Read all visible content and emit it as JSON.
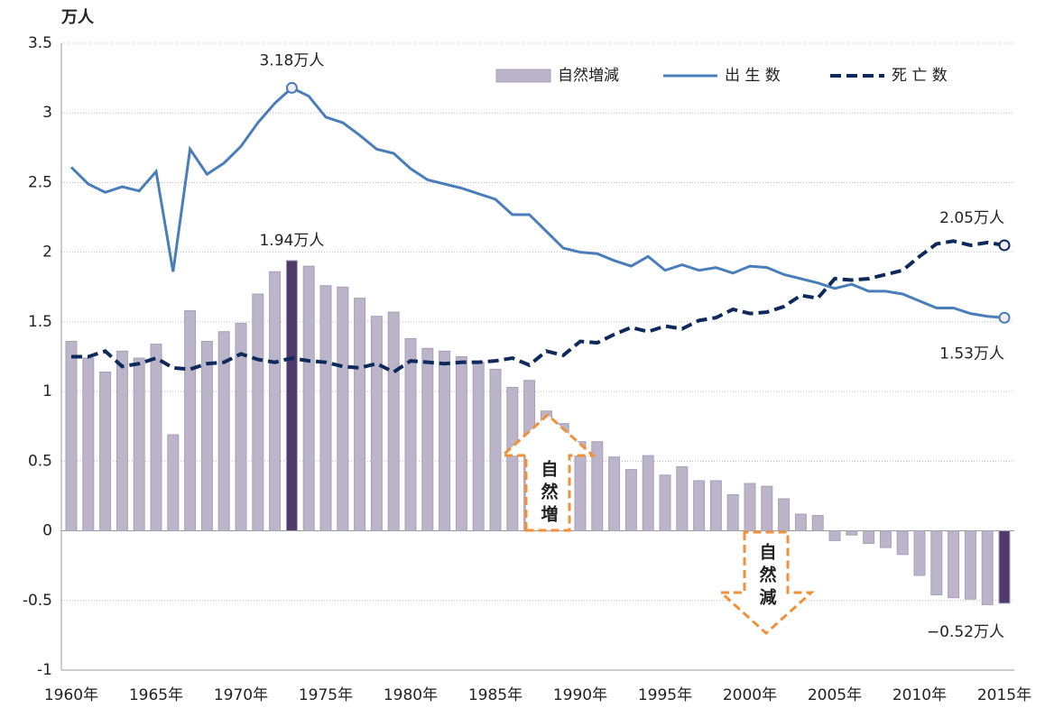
{
  "chart_data": {
    "type": "bar_line",
    "y_unit_label": "万人",
    "categories": [
      "1960年",
      null,
      null,
      null,
      null,
      "1965年",
      null,
      null,
      null,
      null,
      "1970年",
      null,
      null,
      null,
      null,
      "1975年",
      null,
      null,
      null,
      null,
      "1980年",
      null,
      null,
      null,
      null,
      "1985年",
      null,
      null,
      null,
      null,
      "1990年",
      null,
      null,
      null,
      null,
      "1995年",
      null,
      null,
      null,
      null,
      "2000年",
      null,
      null,
      null,
      null,
      "2005年",
      null,
      null,
      null,
      null,
      "2010年",
      null,
      null,
      null,
      null,
      "2015年"
    ],
    "series": [
      {
        "name": "自然増減",
        "kind": "bar",
        "color": "#bcb4c8",
        "highlight_color": "#4f3a6b",
        "values": [
          1.36,
          1.24,
          1.14,
          1.29,
          1.24,
          1.34,
          0.69,
          1.58,
          1.36,
          1.43,
          1.49,
          1.7,
          1.86,
          1.94,
          1.9,
          1.76,
          1.75,
          1.67,
          1.54,
          1.57,
          1.38,
          1.31,
          1.29,
          1.25,
          1.21,
          1.16,
          1.03,
          1.08,
          0.86,
          0.77,
          0.64,
          0.64,
          0.53,
          0.44,
          0.54,
          0.4,
          0.46,
          0.36,
          0.36,
          0.26,
          0.34,
          0.32,
          0.23,
          0.12,
          0.11,
          -0.07,
          -0.03,
          -0.09,
          -0.12,
          -0.17,
          -0.32,
          -0.46,
          -0.48,
          -0.49,
          -0.53,
          -0.52
        ],
        "value_labels": [
          null,
          null,
          null,
          null,
          null,
          null,
          null,
          null,
          null,
          null,
          null,
          null,
          null,
          "1.94万人",
          null,
          null,
          null,
          null,
          null,
          null,
          null,
          null,
          null,
          null,
          null,
          null,
          null,
          null,
          null,
          null,
          null,
          null,
          null,
          null,
          null,
          null,
          null,
          null,
          null,
          null,
          null,
          null,
          null,
          null,
          null,
          null,
          null,
          null,
          null,
          null,
          null,
          null,
          null,
          null,
          null,
          "−0.52万人"
        ]
      },
      {
        "name": "出 生 数",
        "kind": "line",
        "color": "#4a7ebb",
        "dash": false,
        "values": [
          2.61,
          2.49,
          2.43,
          2.47,
          2.44,
          2.58,
          1.86,
          2.74,
          2.56,
          2.64,
          2.76,
          2.93,
          3.07,
          3.18,
          3.12,
          2.97,
          2.93,
          2.84,
          2.74,
          2.71,
          2.6,
          2.52,
          2.49,
          2.46,
          2.42,
          2.38,
          2.27,
          2.27,
          2.15,
          2.03,
          2.0,
          1.99,
          1.94,
          1.9,
          1.97,
          1.87,
          1.91,
          1.87,
          1.89,
          1.85,
          1.9,
          1.89,
          1.84,
          1.81,
          1.78,
          1.74,
          1.77,
          1.72,
          1.72,
          1.7,
          1.65,
          1.6,
          1.6,
          1.56,
          1.54,
          1.53
        ],
        "value_labels": [
          null,
          null,
          null,
          null,
          null,
          null,
          null,
          null,
          null,
          null,
          null,
          null,
          null,
          "3.18万人",
          null,
          null,
          null,
          null,
          null,
          null,
          null,
          null,
          null,
          null,
          null,
          null,
          null,
          null,
          null,
          null,
          null,
          null,
          null,
          null,
          null,
          null,
          null,
          null,
          null,
          null,
          null,
          null,
          null,
          null,
          null,
          null,
          null,
          null,
          null,
          null,
          null,
          null,
          null,
          null,
          null,
          "1.53万人"
        ]
      },
      {
        "name": "死 亡 数",
        "kind": "line",
        "color": "#0e2a5c",
        "dash": true,
        "values": [
          1.25,
          1.25,
          1.29,
          1.18,
          1.2,
          1.24,
          1.17,
          1.16,
          1.2,
          1.21,
          1.27,
          1.23,
          1.21,
          1.24,
          1.22,
          1.21,
          1.18,
          1.17,
          1.2,
          1.14,
          1.22,
          1.21,
          1.2,
          1.21,
          1.21,
          1.22,
          1.24,
          1.19,
          1.29,
          1.26,
          1.36,
          1.35,
          1.41,
          1.46,
          1.43,
          1.47,
          1.45,
          1.51,
          1.53,
          1.59,
          1.56,
          1.57,
          1.61,
          1.69,
          1.67,
          1.81,
          1.8,
          1.81,
          1.84,
          1.87,
          1.97,
          2.06,
          2.08,
          2.05,
          2.07,
          2.05
        ],
        "value_labels": [
          null,
          null,
          null,
          null,
          null,
          null,
          null,
          null,
          null,
          null,
          null,
          null,
          null,
          null,
          null,
          null,
          null,
          null,
          null,
          null,
          null,
          null,
          null,
          null,
          null,
          null,
          null,
          null,
          null,
          null,
          null,
          null,
          null,
          null,
          null,
          null,
          null,
          null,
          null,
          null,
          null,
          null,
          null,
          null,
          null,
          null,
          null,
          null,
          null,
          null,
          null,
          null,
          null,
          null,
          null,
          "2.05万人"
        ]
      }
    ],
    "annotations": [
      "自然増",
      "自然減"
    ],
    "ylim": [
      -1,
      3.5
    ],
    "yticks": [
      -1,
      -0.5,
      0,
      0.5,
      1,
      1.5,
      2,
      2.5,
      3,
      3.5
    ],
    "grid": true,
    "legend": "top-right"
  }
}
